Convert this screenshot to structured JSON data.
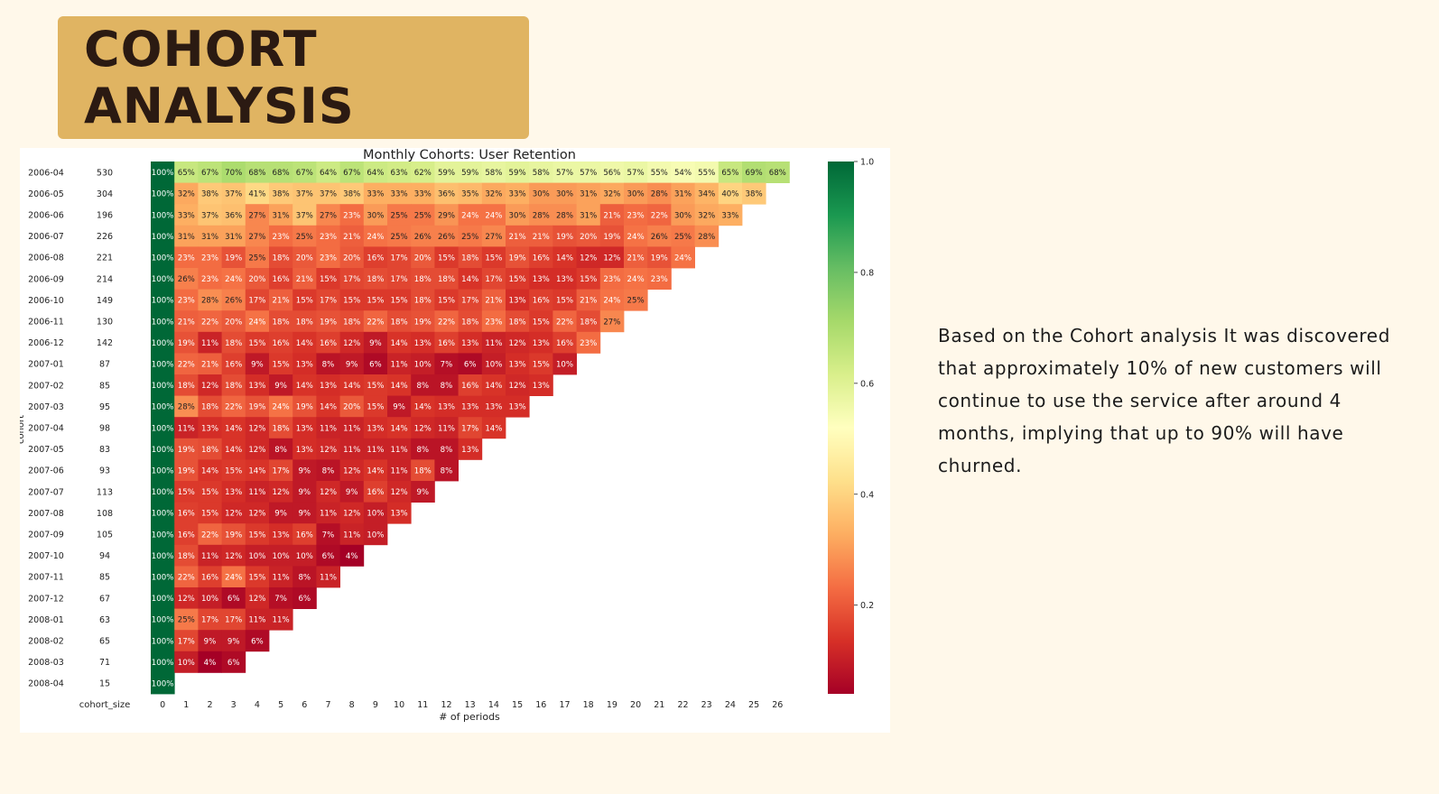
{
  "page_title": "COHORT ANALYSIS",
  "commentary": "Based on the Cohort analysis It was discovered that approximately 10% of new customers will continue to use the service after around 4 months, implying that up to 90% will have churned.",
  "chart_data": {
    "type": "heatmap",
    "title": "Monthly Cohorts: User Retention",
    "xlabel": "# of periods",
    "ylabel": "cohort",
    "size_column_label": "cohort_size",
    "periods": [
      0,
      1,
      2,
      3,
      4,
      5,
      6,
      7,
      8,
      9,
      10,
      11,
      12,
      13,
      14,
      15,
      16,
      17,
      18,
      19,
      20,
      21,
      22,
      23,
      24,
      25,
      26
    ],
    "colormap": "RdYlGn",
    "vmin": 0.04,
    "vmax": 1.0,
    "colorbar_ticks": [
      0.2,
      0.4,
      0.6,
      0.8,
      1.0
    ],
    "colorbar_tick_labels": [
      "0.2",
      "0.4",
      "0.6",
      "0.8",
      "1.0"
    ],
    "cohorts": [
      {
        "cohort": "2006-04",
        "size": "530",
        "values": [
          100,
          65,
          67,
          70,
          68,
          68,
          67,
          64,
          67,
          64,
          63,
          62,
          59,
          59,
          58,
          59,
          58,
          57,
          57,
          56,
          57,
          55,
          54,
          55,
          65,
          69,
          68
        ]
      },
      {
        "cohort": "2006-05",
        "size": "304",
        "values": [
          100,
          32,
          38,
          37,
          41,
          38,
          37,
          37,
          38,
          33,
          33,
          33,
          36,
          35,
          32,
          33,
          30,
          30,
          31,
          32,
          30,
          28,
          31,
          34,
          40,
          38
        ]
      },
      {
        "cohort": "2006-06",
        "size": "196",
        "values": [
          100,
          33,
          37,
          36,
          27,
          31,
          37,
          27,
          23,
          30,
          25,
          25,
          29,
          24,
          24,
          30,
          28,
          28,
          31,
          21,
          23,
          22,
          30,
          32,
          33
        ]
      },
      {
        "cohort": "2006-07",
        "size": "226",
        "values": [
          100,
          31,
          31,
          31,
          27,
          23,
          25,
          23,
          21,
          24,
          25,
          26,
          26,
          25,
          27,
          21,
          21,
          19,
          20,
          19,
          24,
          26,
          25,
          28
        ]
      },
      {
        "cohort": "2006-08",
        "size": "221",
        "values": [
          100,
          23,
          23,
          19,
          25,
          18,
          20,
          23,
          20,
          16,
          17,
          20,
          15,
          18,
          15,
          19,
          16,
          14,
          12,
          12,
          21,
          19,
          24
        ]
      },
      {
        "cohort": "2006-09",
        "size": "214",
        "values": [
          100,
          26,
          23,
          24,
          20,
          16,
          21,
          15,
          17,
          18,
          17,
          18,
          18,
          14,
          17,
          15,
          13,
          13,
          15,
          23,
          24,
          23
        ]
      },
      {
        "cohort": "2006-10",
        "size": "149",
        "values": [
          100,
          23,
          28,
          26,
          17,
          21,
          15,
          17,
          15,
          15,
          15,
          18,
          15,
          17,
          21,
          13,
          16,
          15,
          21,
          24,
          25
        ]
      },
      {
        "cohort": "2006-11",
        "size": "130",
        "values": [
          100,
          21,
          22,
          20,
          24,
          18,
          18,
          19,
          18,
          22,
          18,
          19,
          22,
          18,
          23,
          18,
          15,
          22,
          18,
          27
        ]
      },
      {
        "cohort": "2006-12",
        "size": "142",
        "values": [
          100,
          19,
          11,
          18,
          15,
          16,
          14,
          16,
          12,
          9,
          14,
          13,
          16,
          13,
          11,
          12,
          13,
          16,
          23
        ]
      },
      {
        "cohort": "2007-01",
        "size": "87",
        "values": [
          100,
          22,
          21,
          16,
          9,
          15,
          13,
          8,
          9,
          6,
          11,
          10,
          7,
          6,
          10,
          13,
          15,
          10
        ]
      },
      {
        "cohort": "2007-02",
        "size": "85",
        "values": [
          100,
          18,
          12,
          18,
          13,
          9,
          14,
          13,
          14,
          15,
          14,
          8,
          8,
          16,
          14,
          12,
          13
        ]
      },
      {
        "cohort": "2007-03",
        "size": "95",
        "values": [
          100,
          28,
          18,
          22,
          19,
          24,
          19,
          14,
          20,
          15,
          9,
          14,
          13,
          13,
          13,
          13
        ]
      },
      {
        "cohort": "2007-04",
        "size": "98",
        "values": [
          100,
          11,
          13,
          14,
          12,
          18,
          13,
          11,
          11,
          13,
          14,
          12,
          11,
          17,
          14
        ]
      },
      {
        "cohort": "2007-05",
        "size": "83",
        "values": [
          100,
          19,
          18,
          14,
          12,
          8,
          13,
          12,
          11,
          11,
          11,
          8,
          8,
          13
        ]
      },
      {
        "cohort": "2007-06",
        "size": "93",
        "values": [
          100,
          19,
          14,
          15,
          14,
          17,
          9,
          8,
          12,
          14,
          11,
          18,
          8
        ]
      },
      {
        "cohort": "2007-07",
        "size": "113",
        "values": [
          100,
          15,
          15,
          13,
          11,
          12,
          9,
          12,
          9,
          16,
          12,
          9
        ]
      },
      {
        "cohort": "2007-08",
        "size": "108",
        "values": [
          100,
          16,
          15,
          12,
          12,
          9,
          9,
          11,
          12,
          10,
          13
        ]
      },
      {
        "cohort": "2007-09",
        "size": "105",
        "values": [
          100,
          16,
          22,
          19,
          15,
          13,
          16,
          7,
          11,
          10
        ]
      },
      {
        "cohort": "2007-10",
        "size": "94",
        "values": [
          100,
          18,
          11,
          12,
          10,
          10,
          10,
          6,
          4
        ]
      },
      {
        "cohort": "2007-11",
        "size": "85",
        "values": [
          100,
          22,
          16,
          24,
          15,
          11,
          8,
          11
        ]
      },
      {
        "cohort": "2007-12",
        "size": "67",
        "values": [
          100,
          12,
          10,
          6,
          12,
          7,
          6
        ]
      },
      {
        "cohort": "2008-01",
        "size": "63",
        "values": [
          100,
          25,
          17,
          17,
          11,
          11
        ]
      },
      {
        "cohort": "2008-02",
        "size": "65",
        "values": [
          100,
          17,
          9,
          9,
          6
        ]
      },
      {
        "cohort": "2008-03",
        "size": "71",
        "values": [
          100,
          10,
          4,
          6
        ]
      },
      {
        "cohort": "2008-04",
        "size": "15",
        "values": [
          100
        ]
      }
    ]
  }
}
